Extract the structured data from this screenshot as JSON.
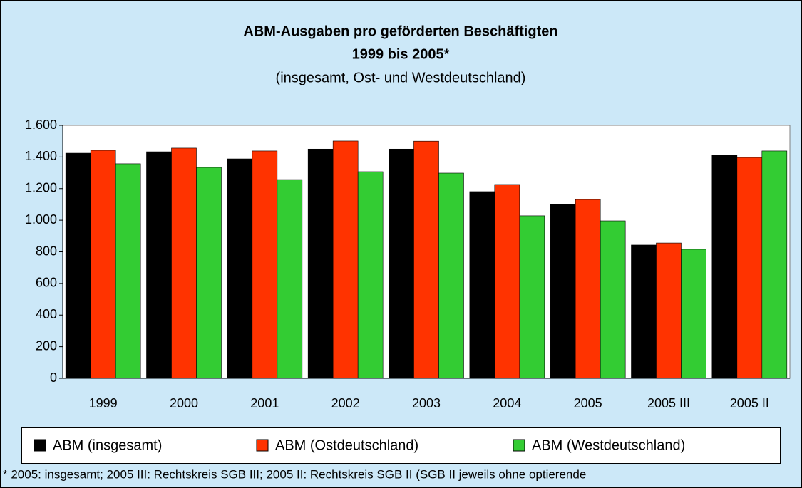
{
  "chart_data": {
    "type": "bar",
    "title": "ABM-Ausgaben pro geförderten Beschäftigten",
    "subtitle": "1999 bis 2005*",
    "subtitle2": "(insgesamt, Ost- und Westdeutschland)",
    "categories": [
      "1999",
      "2000",
      "2001",
      "2002",
      "2003",
      "2004",
      "2005",
      "2005 III",
      "2005 II"
    ],
    "series": [
      {
        "name": "ABM (insgesamt)",
        "color": "#000000",
        "values": [
          1424,
          1433,
          1388,
          1450,
          1450,
          1181,
          1100,
          843,
          1411
        ]
      },
      {
        "name": "ABM (Ostdeutschland)",
        "color": "#ff3300",
        "values": [
          1442,
          1456,
          1438,
          1501,
          1500,
          1226,
          1131,
          856,
          1397
        ]
      },
      {
        "name": "ABM (Westdeutschland)",
        "color": "#33cc33",
        "values": [
          1357,
          1334,
          1257,
          1307,
          1298,
          1028,
          996,
          816,
          1438
        ]
      }
    ],
    "ylim": [
      0,
      1600
    ],
    "yticks": [
      0,
      200,
      400,
      600,
      800,
      {
        "value": 1000,
        "label": "1.000"
      },
      {
        "value": 1200,
        "label": "1.200"
      },
      {
        "value": 1400,
        "label": "1.400"
      },
      {
        "value": 1600,
        "label": "1.600"
      }
    ],
    "grid": false,
    "legend": "bottom",
    "footnote": "* 2005: insgesamt; 2005 III: Rechtskreis SGB III; 2005 II: Rechtskreis SGB II (SGB II jeweils ohne optierende"
  }
}
